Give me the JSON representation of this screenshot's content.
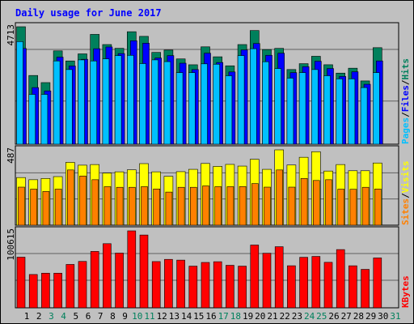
{
  "chart_data": {
    "title": "Daily usage for June 2017",
    "type": "bar",
    "days": [
      "1",
      "2",
      "3",
      "4",
      "5",
      "6",
      "7",
      "8",
      "9",
      "10",
      "11",
      "12",
      "13",
      "14",
      "15",
      "16",
      "17",
      "18",
      "19",
      "20",
      "21",
      "22",
      "23",
      "24",
      "25",
      "26",
      "27",
      "28",
      "29",
      "30",
      "31"
    ],
    "weekend_days": [
      "3",
      "4",
      "10",
      "11",
      "17",
      "18",
      "24",
      "25",
      "31"
    ],
    "panels": [
      {
        "id": "hits",
        "max_label": "4713",
        "max": 4713,
        "legend": [
          {
            "label": "Pages",
            "color": "#00c0ff"
          },
          {
            "label": "Files",
            "color": "#0000ff"
          },
          {
            "label": "Hits",
            "color": "#00805c"
          }
        ],
        "series": [
          {
            "name": "Hits",
            "color": "#00805c",
            "values": [
              4713,
              2757,
              2471,
              3745,
              3340,
              3624,
              4406,
              3998,
              3847,
              4513,
              4327,
              3683,
              3776,
              3422,
              3187,
              3907,
              3507,
              3145,
              3998,
              4561,
              3797,
              3845,
              2996,
              3231,
              3528,
              3188,
              2852,
              3050,
              2538,
              3873,
              null
            ]
          },
          {
            "name": "Files",
            "color": "#0000ff",
            "values": [
              3840,
              2271,
              2138,
              3493,
              3137,
              3407,
              3831,
              3902,
              3636,
              4150,
              4053,
              3457,
              3555,
              3250,
              2995,
              3651,
              3278,
              2899,
              3783,
              4040,
              3567,
              3651,
              2871,
              3108,
              3329,
              3036,
              2718,
              2906,
              2404,
              3340,
              null
            ]
          },
          {
            "name": "Pages",
            "color": "#00c0ff",
            "values": [
              4118,
              1998,
              1998,
              3340,
              2995,
              3383,
              3340,
              3425,
              3555,
              3566,
              3233,
              3383,
              3313,
              2871,
              2871,
              3224,
              3208,
              2746,
              3555,
              3831,
              3308,
              3036,
              2651,
              2871,
              2995,
              2746,
              2622,
              2622,
              2271,
              2871,
              null
            ]
          }
        ]
      },
      {
        "id": "visits",
        "max_label": "487",
        "max": 487,
        "legend": [
          {
            "label": "Sites",
            "color": "#ff8000"
          },
          {
            "label": "Visits",
            "color": "#ffff00"
          }
        ],
        "series": [
          {
            "name": "Visits",
            "color": "#ffff00",
            "values": [
              308,
              294,
              302,
              314,
              406,
              388,
              392,
              337,
              345,
              358,
              398,
              345,
              316,
              346,
              361,
              399,
              380,
              393,
              382,
              426,
              361,
              487,
              389,
              439,
              475,
              350,
              392,
              352,
              352,
              402,
              null
            ]
          },
          {
            "name": "Sites",
            "color": "#ff8000",
            "values": [
              246,
              233,
              218,
              233,
              357,
              318,
              294,
              249,
              245,
              245,
              249,
              234,
              214,
              245,
              245,
              254,
              249,
              249,
              250,
              269,
              246,
              357,
              246,
              302,
              289,
              294,
              233,
              232,
              245,
              234,
              null
            ]
          }
        ]
      },
      {
        "id": "kbytes",
        "max_label": "100615",
        "max": 100615,
        "legend": [
          {
            "label": "KBytes",
            "color": "#ff0000"
          }
        ],
        "series": [
          {
            "name": "KBytes",
            "color": "#ff0000",
            "values": [
              66213,
              43540,
              45271,
              45271,
              56710,
              60650,
              73720,
              83870,
              71540,
              100615,
              95180,
              60450,
              63320,
              62350,
              54490,
              59320,
              60270,
              55590,
              54490,
              82080,
              71380,
              79900,
              54990,
              66050,
              67190,
              59470,
              76140,
              54950,
              50280,
              65210,
              null
            ]
          }
        ]
      }
    ]
  }
}
